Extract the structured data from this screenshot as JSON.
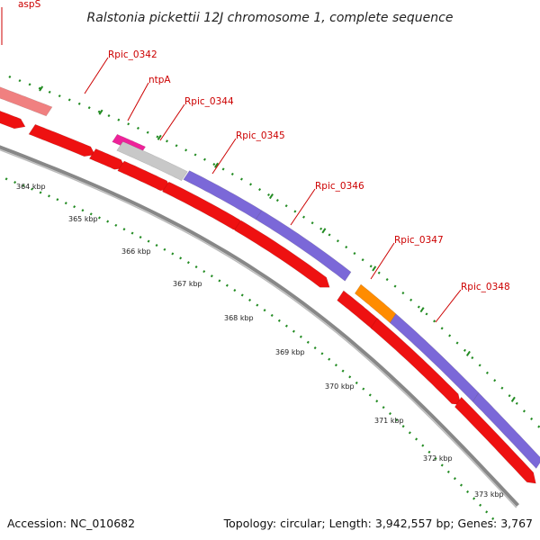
{
  "title": "Ralstonia pickettii 12J chromosome 1, complete sequence",
  "footer": {
    "accession": "Accession: NC_010682",
    "summary": "Topology: circular; Length: 3,942,557 bp; Genes: 3,767"
  },
  "colors": {
    "cds": "#ee1111",
    "cds_edge": "#aa0000",
    "trna_red": "#f08080",
    "rrna_grey": "#c8c8c8",
    "blue_feature": "#7b68d8",
    "orange_feature": "#ff8c00",
    "magenta_feature": "#ee2299",
    "backbone": "#888888",
    "tick_green": "#228b22",
    "label_red": "#cc0000"
  },
  "gene_labels": [
    {
      "name": "aspS"
    },
    {
      "name": "Rpic_0342"
    },
    {
      "name": "ntpA"
    },
    {
      "name": "Rpic_0344"
    },
    {
      "name": "Rpic_0345"
    },
    {
      "name": "Rpic_0346"
    },
    {
      "name": "Rpic_0347"
    },
    {
      "name": "Rpic_0348"
    }
  ],
  "kbp_labels": [
    "364 kbp",
    "365 kbp",
    "366 kbp",
    "367 kbp",
    "368 kbp",
    "369 kbp",
    "370 kbp",
    "371 kbp",
    "372 kbp",
    "373 kbp"
  ]
}
